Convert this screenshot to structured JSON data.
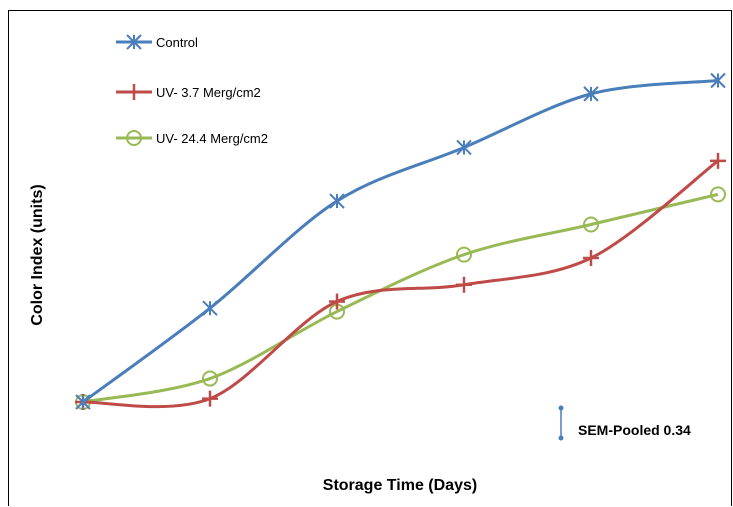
{
  "chart_data": {
    "type": "line",
    "title": "",
    "xlabel": "Storage Time (Days)",
    "ylabel": "Color Index (units)",
    "x": [
      0,
      1,
      2,
      3,
      4,
      5
    ],
    "ylim": [
      0,
      10.6
    ],
    "grid": false,
    "legend_position": "top-left",
    "series": [
      {
        "name": "Control",
        "color": "#4a7ebb",
        "marker": "asterisk",
        "values": [
          0,
          2.8,
          6.0,
          7.6,
          9.2,
          9.6
        ]
      },
      {
        "name": "UV- 3.7 Merg/cm2",
        "color": "#be4b48",
        "marker": "plus",
        "values": [
          0,
          0.1,
          3.0,
          3.5,
          4.3,
          7.2
        ]
      },
      {
        "name": "UV- 24.4 Merg/cm2",
        "color": "#98b954",
        "marker": "circle",
        "values": [
          0,
          0.7,
          2.7,
          4.4,
          5.3,
          6.2
        ]
      }
    ],
    "annotations": [
      {
        "text": "SEM-Pooled 0.34",
        "type": "error-bar",
        "value": 0.34
      }
    ]
  }
}
